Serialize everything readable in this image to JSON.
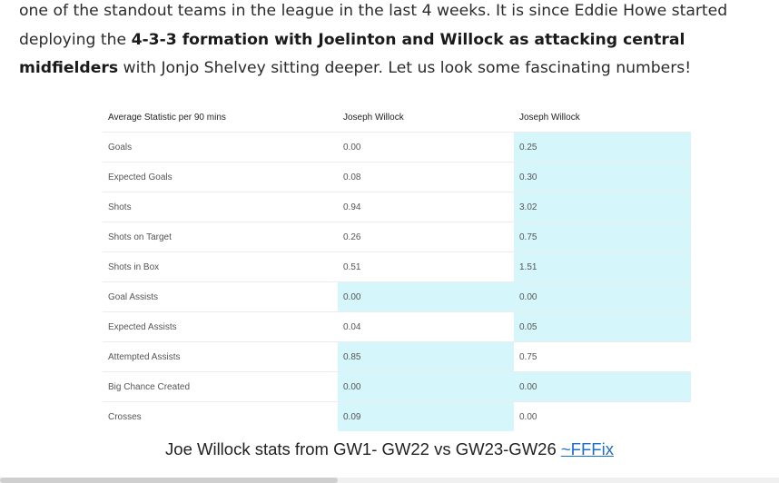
{
  "article": {
    "line1": "one of the standout teams in the league in the last 4 weeks. It is since Eddie Howe started deploying the",
    "bold": "4-3-3 formation with Joelinton and Willock as attacking central midfielders",
    "after_bold": " with Jonjo Shelvey sitting deeper. Let us look some fascinating numbers!"
  },
  "table": {
    "headers": [
      "Average Statistic per 90 mins",
      "Joseph Willock",
      "Joseph Willock"
    ],
    "rows": [
      {
        "stat": "Goals",
        "a": "0.00",
        "b": "0.25"
      },
      {
        "stat": "Expected Goals",
        "a": "0.08",
        "b": "0.30"
      },
      {
        "stat": "Shots",
        "a": "0.94",
        "b": "3.02"
      },
      {
        "stat": "Shots on Target",
        "a": "0.26",
        "b": "0.75"
      },
      {
        "stat": "Shots in Box",
        "a": "0.51",
        "b": "1.51"
      },
      {
        "stat": "Goal Assists",
        "a": "0.00",
        "b": "0.00"
      },
      {
        "stat": "Expected Assists",
        "a": "0.04",
        "b": "0.05"
      },
      {
        "stat": "Attempted Assists",
        "a": "0.85",
        "b": "0.75"
      },
      {
        "stat": "Big Chance Created",
        "a": "0.00",
        "b": "0.00"
      },
      {
        "stat": "Crosses",
        "a": "0.09",
        "b": "0.00"
      }
    ],
    "highlight_color": "#d5f6fb"
  },
  "caption": {
    "text": "Joe Willock stats from GW1- GW22 vs GW23-GW26 ",
    "link": "~FFFix",
    "link_color": "#1e6fc7"
  }
}
